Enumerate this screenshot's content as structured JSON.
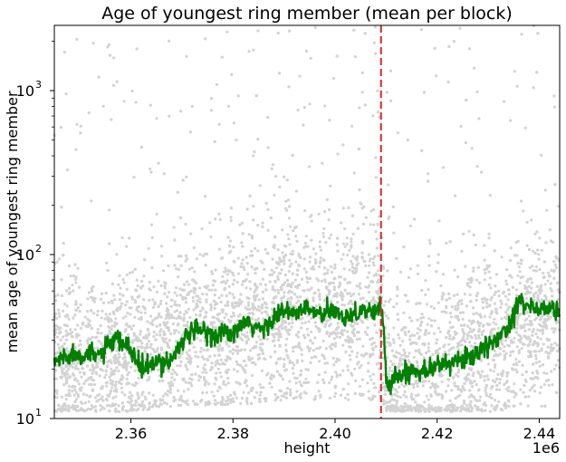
{
  "chart_data": {
    "type": "scatter",
    "title": "Age of youngest ring member (mean per block)",
    "xlabel": "height",
    "ylabel": "mean age of youngest ring member",
    "x_offset_label": "1e6",
    "xlim": [
      2.345,
      2.444
    ],
    "ylim": [
      10,
      2500
    ],
    "yscale": "log",
    "x_ticks": [
      2.36,
      2.38,
      2.4,
      2.42,
      2.44
    ],
    "x_tick_labels": [
      "2.36",
      "2.38",
      "2.40",
      "2.42",
      "2.44"
    ],
    "y_ticks": [
      10,
      100,
      1000
    ],
    "y_tick_labels": [
      "10",
      "10",
      "10"
    ],
    "y_tick_exponents": [
      "1",
      "2",
      "3"
    ],
    "vline": {
      "x": 2.409,
      "style": "dashed",
      "color": "#d62728"
    },
    "series": [
      {
        "kind": "scatter",
        "color": "#d3d3d3",
        "description_points": "dense per-block scatter of mean youngest-member age",
        "band": [
          {
            "x": 2.345,
            "low": 11,
            "median": 22,
            "high": 70
          },
          {
            "x": 2.36,
            "low": 11,
            "median": 24,
            "high": 80
          },
          {
            "x": 2.37,
            "low": 12,
            "median": 32,
            "high": 110
          },
          {
            "x": 2.38,
            "low": 12,
            "median": 35,
            "high": 140
          },
          {
            "x": 2.39,
            "low": 13,
            "median": 44,
            "high": 180
          },
          {
            "x": 2.4,
            "low": 13,
            "median": 45,
            "high": 190
          },
          {
            "x": 2.409,
            "low": 13,
            "median": 44,
            "high": 180
          },
          {
            "x": 2.41,
            "low": 11,
            "median": 17,
            "high": 60
          },
          {
            "x": 2.42,
            "low": 11,
            "median": 20,
            "high": 80
          },
          {
            "x": 2.43,
            "low": 11,
            "median": 28,
            "high": 100
          },
          {
            "x": 2.444,
            "low": 12,
            "median": 45,
            "high": 130
          }
        ]
      },
      {
        "kind": "line",
        "color": "#008000",
        "x": [
          2.345,
          2.347,
          2.35,
          2.353,
          2.355,
          2.357,
          2.359,
          2.36,
          2.362,
          2.364,
          2.366,
          2.368,
          2.37,
          2.372,
          2.374,
          2.376,
          2.378,
          2.38,
          2.382,
          2.384,
          2.386,
          2.388,
          2.39,
          2.392,
          2.394,
          2.396,
          2.398,
          2.4,
          2.402,
          2.404,
          2.406,
          2.408,
          2.409,
          2.4095,
          2.41,
          2.412,
          2.414,
          2.416,
          2.418,
          2.42,
          2.422,
          2.424,
          2.426,
          2.428,
          2.43,
          2.432,
          2.434,
          2.436,
          2.438,
          2.44,
          2.442,
          2.444
        ],
        "y": [
          22,
          24,
          25,
          24,
          26,
          30,
          28,
          26,
          20,
          21,
          22,
          23,
          30,
          33,
          35,
          32,
          34,
          32,
          38,
          36,
          35,
          42,
          45,
          43,
          47,
          44,
          43,
          45,
          42,
          44,
          46,
          44,
          48,
          40,
          16,
          18,
          19,
          20,
          20,
          21,
          22,
          22,
          24,
          25,
          27,
          32,
          36,
          55,
          48,
          46,
          47,
          46
        ]
      }
    ]
  }
}
